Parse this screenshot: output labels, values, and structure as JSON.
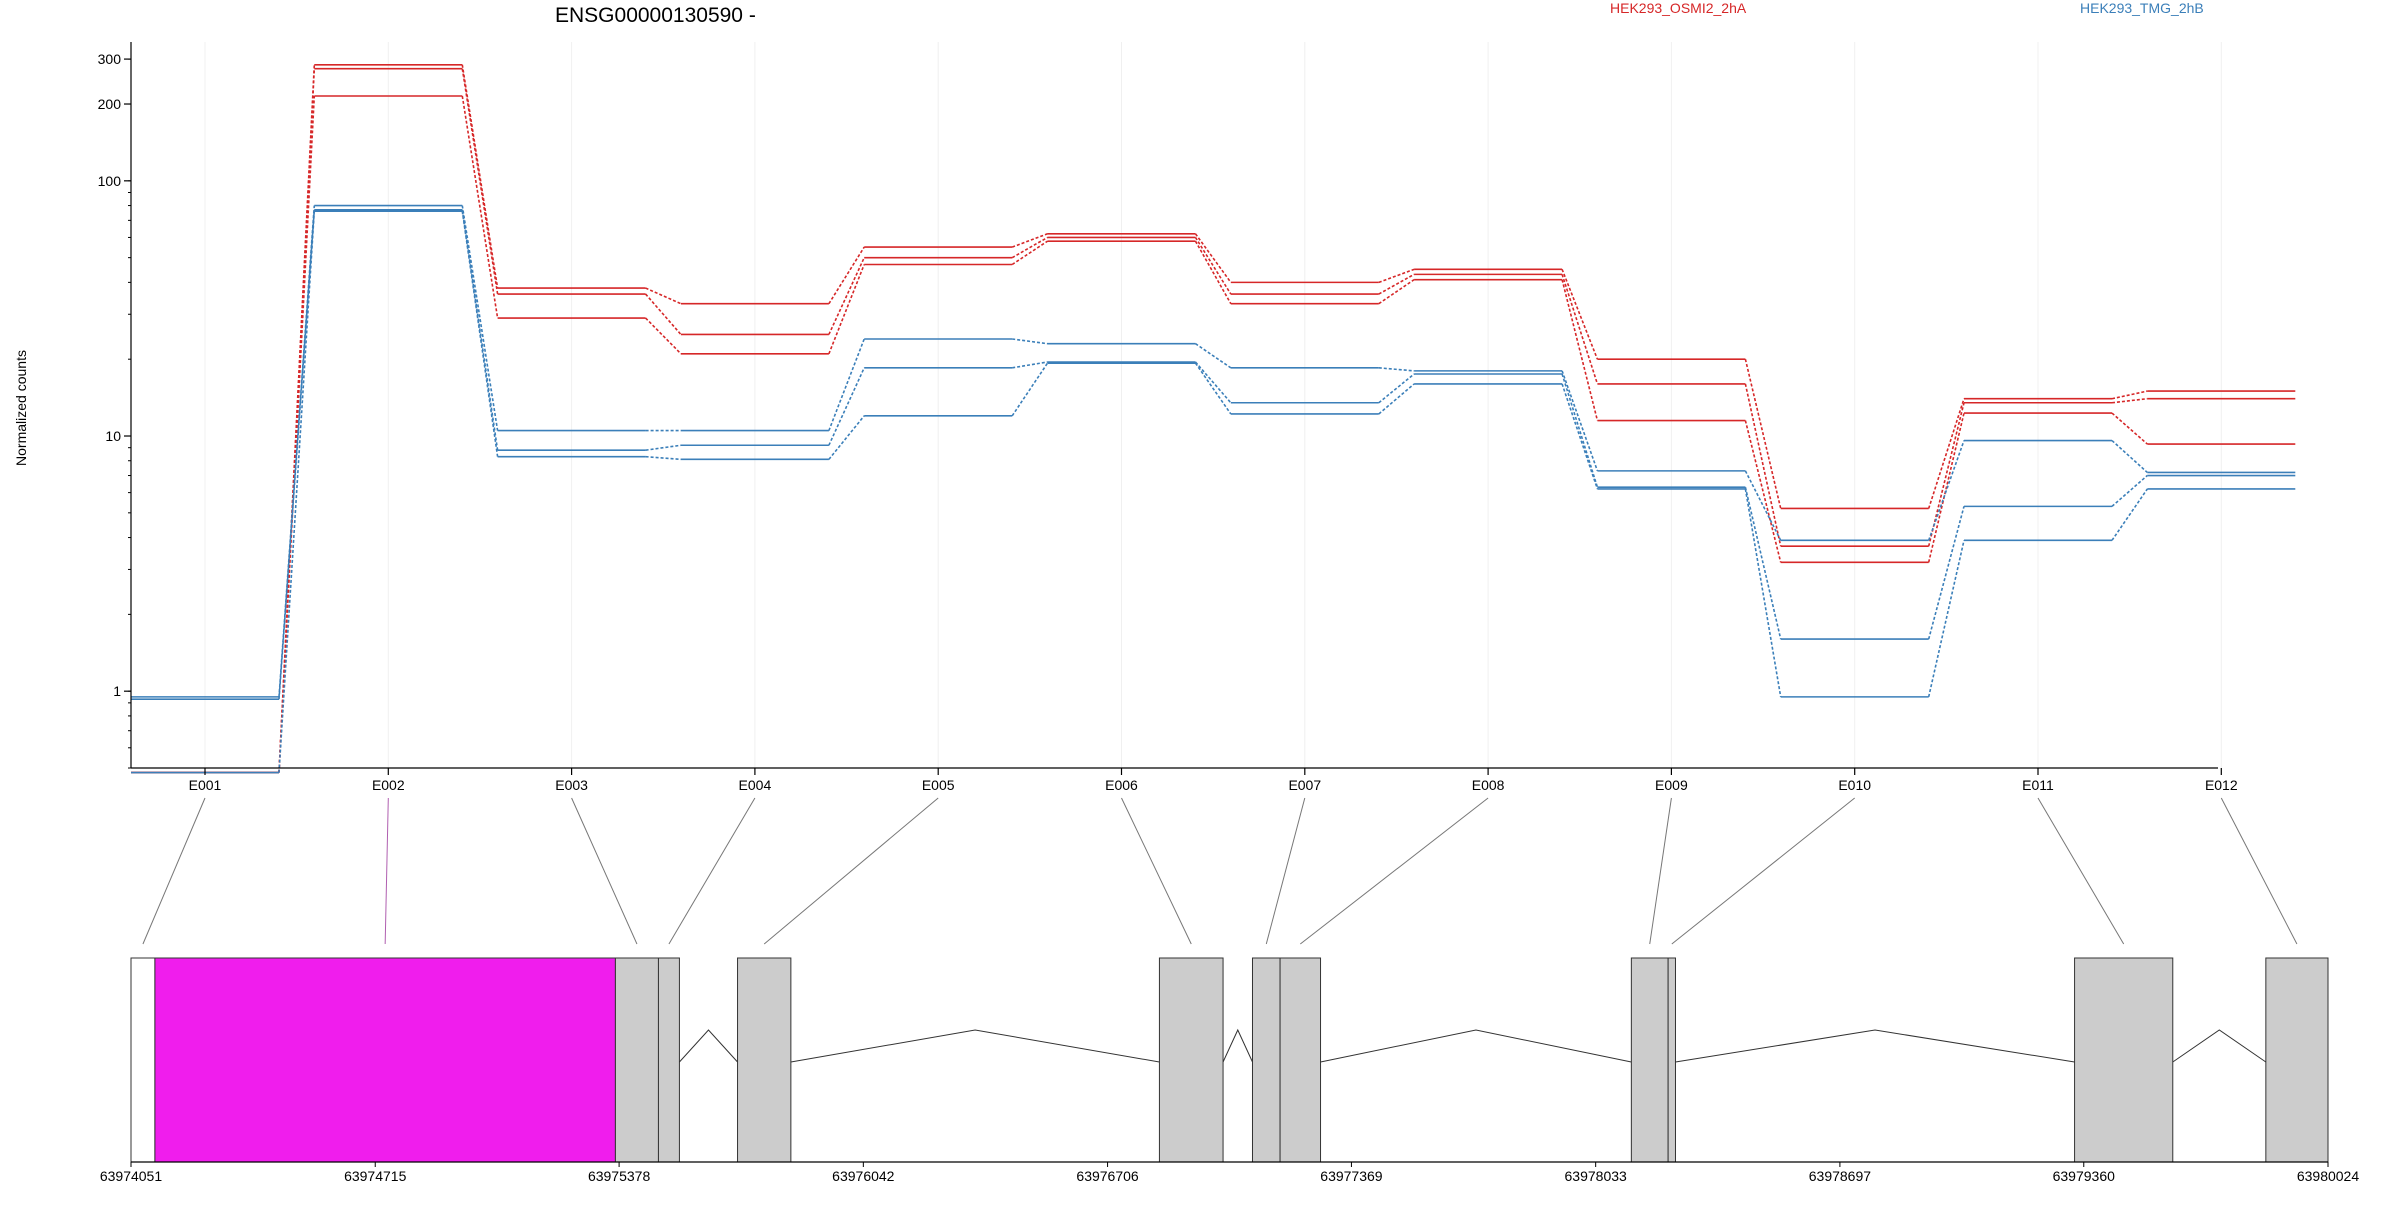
{
  "chart_data": {
    "type": "line",
    "title": "ENSG00000130590 -",
    "ylabel": "Normalized counts",
    "yscale": "log",
    "ylim": [
      0.5,
      350
    ],
    "yticks": [
      1,
      10,
      100,
      200,
      300
    ],
    "categories": [
      "E001",
      "E002",
      "E003",
      "E004",
      "E005",
      "E006",
      "E007",
      "E008",
      "E009",
      "E010",
      "E011",
      "E012"
    ],
    "legend": [
      {
        "name": "HEK293_OSMI2_2hA",
        "color": "#d62728"
      },
      {
        "name": "HEK293_TMG_2hB",
        "color": "#3b7fb9"
      }
    ],
    "series": [
      {
        "group": "HEK293_OSMI2_2hA",
        "color": "#d62728",
        "values": [
          0.48,
          285,
          38,
          33,
          55,
          62,
          40,
          45,
          20,
          5.2,
          14,
          15
        ]
      },
      {
        "group": "HEK293_OSMI2_2hA",
        "color": "#d62728",
        "values": [
          0.48,
          275,
          36,
          25,
          50,
          60,
          36,
          43,
          16,
          3.7,
          13.5,
          14
        ]
      },
      {
        "group": "HEK293_OSMI2_2hA",
        "color": "#d62728",
        "values": [
          0.48,
          215,
          29,
          21,
          47,
          58,
          33,
          41,
          11.5,
          3.2,
          12.3,
          9.3
        ]
      },
      {
        "group": "HEK293_TMG_2hB",
        "color": "#3b7fb9",
        "values": [
          0.95,
          80,
          10.5,
          10.5,
          24,
          23,
          18.5,
          18,
          7.3,
          3.9,
          9.6,
          7.2
        ]
      },
      {
        "group": "HEK293_TMG_2hB",
        "color": "#3b7fb9",
        "values": [
          0.93,
          77,
          8.8,
          9.2,
          18.5,
          19.5,
          13.5,
          17.5,
          6.3,
          1.6,
          5.3,
          7
        ]
      },
      {
        "group": "HEK293_TMG_2hB",
        "color": "#3b7fb9",
        "values": [
          0.48,
          76,
          8.3,
          8.1,
          12,
          19.3,
          12.2,
          16,
          6.2,
          0.95,
          3.9,
          6.2
        ]
      }
    ],
    "gene_model": {
      "coordinate_labels": [
        "63974051",
        "63974715",
        "63975378",
        "63976042",
        "63976706",
        "63977369",
        "63978033",
        "63978697",
        "63979360",
        "63980024"
      ],
      "coordinate_range": [
        63974051,
        63980024
      ],
      "exons": [
        {
          "id": "E001",
          "start": 63974051,
          "end": 63974116,
          "color": "#ffffff"
        },
        {
          "id": "E002",
          "start": 63974116,
          "end": 63975368,
          "color": "#f01ded"
        },
        {
          "id": "E003",
          "start": 63975368,
          "end": 63975485,
          "color": "#cccccc"
        },
        {
          "id": "E004",
          "start": 63975485,
          "end": 63975542,
          "color": "#cccccc"
        },
        {
          "id": "E005",
          "start": 63975700,
          "end": 63975845,
          "color": "#cccccc"
        },
        {
          "id": "E006",
          "start": 63976847,
          "end": 63977020,
          "color": "#cccccc"
        },
        {
          "id": "E007",
          "start": 63977100,
          "end": 63977175,
          "color": "#cccccc"
        },
        {
          "id": "E008",
          "start": 63977175,
          "end": 63977285,
          "color": "#cccccc"
        },
        {
          "id": "E009",
          "start": 63978130,
          "end": 63978230,
          "color": "#cccccc"
        },
        {
          "id": "E010",
          "start": 63978230,
          "end": 63978250,
          "color": "#cccccc"
        },
        {
          "id": "E011",
          "start": 63979335,
          "end": 63979602,
          "color": "#cccccc"
        },
        {
          "id": "E012",
          "start": 63979855,
          "end": 63980024,
          "color": "#cccccc"
        }
      ],
      "highlight_color": "#b05fb0"
    }
  }
}
